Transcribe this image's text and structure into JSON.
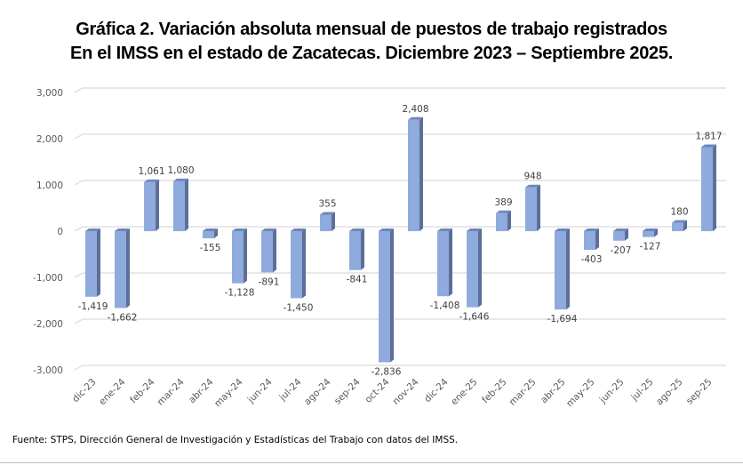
{
  "chart_data": {
    "type": "bar",
    "style": "3d-column",
    "title_line1": "Gráfica 2. Variación absoluta mensual de puestos de trabajo registrados",
    "title_line2": "En el IMSS en el estado de Zacatecas. Diciembre 2023 – Septiembre 2025.",
    "xlabel": "",
    "ylabel": "",
    "ylim": [
      -3000,
      3000
    ],
    "yticks": [
      3000,
      2000,
      1000,
      0,
      -1000,
      -2000,
      -3000
    ],
    "ytick_labels": [
      "3,000",
      "2,000",
      "1,000",
      "0",
      "-1,000",
      "-2,000",
      "-3,000"
    ],
    "grid": true,
    "legend": "none",
    "categories": [
      "dic-23",
      "ene-24",
      "feb-24",
      "mar-24",
      "abr-24",
      "may-24",
      "jun-24",
      "jul-24",
      "ago-24",
      "sep-24",
      "oct-24",
      "nov-24",
      "dic-24",
      "ene-25",
      "feb-25",
      "mar-25",
      "abr-25",
      "may-25",
      "jun-25",
      "jul-25",
      "ago-25",
      "sep-25"
    ],
    "values": [
      -1419,
      -1662,
      1061,
      1080,
      -155,
      -1128,
      -891,
      -1450,
      355,
      -841,
      -2836,
      2408,
      -1408,
      -1646,
      389,
      948,
      -1694,
      -403,
      -207,
      -127,
      180,
      1817
    ],
    "data_labels": [
      "-1,419",
      "-1,662",
      "1,061",
      "1,080",
      "-155",
      "-1,128",
      "-891",
      "-1,450",
      "355",
      "-841",
      "-2,836",
      "2,408",
      "-1,408",
      "-1,646",
      "389",
      "948",
      "-1,694",
      "-403",
      "-207",
      "-127",
      "180",
      "1,817"
    ],
    "colors": {
      "bar_front": "#8faadc",
      "bar_side": "#5b6f99",
      "bar_top": "#6f86b8",
      "grid": "#d9d9d9",
      "axis_text": "#595959",
      "label_text": "#404040"
    }
  },
  "footer": {
    "source": "Fuente: STPS, Dirección General de Investigación y Estadísticas del Trabajo con datos del IMSS."
  }
}
